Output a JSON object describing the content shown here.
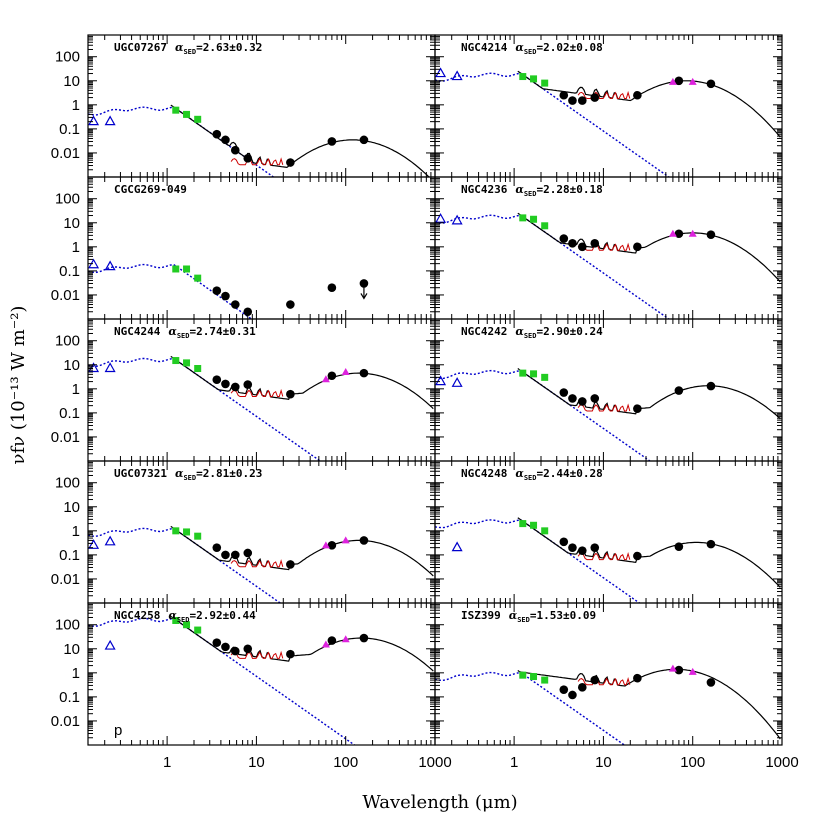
{
  "figure": {
    "xlabel": "Wavelength (μm)",
    "ylabel": "νfν (10⁻¹³ W m⁻²)",
    "x_ticklabels": [
      "1",
      "10",
      "100",
      "1000"
    ],
    "y_ticklabels": [
      "100",
      "10",
      "1",
      "0.1",
      "0.01"
    ]
  },
  "colors": {
    "stellar": "#0000cc",
    "model": "#000000",
    "pah": "#cc0000",
    "nir": "#22cc22",
    "fir": "#dd22dd",
    "data": "#000000"
  },
  "chart_data": [
    {
      "panel": "UGC07267",
      "title": "UGC07267",
      "alpha": "2.63±0.32",
      "type": "scatter",
      "xscale": "log",
      "yscale": "log",
      "xlim": [
        0.13,
        1000
      ],
      "ylim": [
        0.001,
        800
      ],
      "uv": [
        [
          0.15,
          0.2
        ],
        [
          0.23,
          0.2
        ]
      ],
      "nir": [
        [
          1.25,
          0.6
        ],
        [
          1.65,
          0.4
        ],
        [
          2.2,
          0.25
        ]
      ],
      "fir": [],
      "points": [
        [
          3.6,
          0.06
        ],
        [
          4.5,
          0.035
        ],
        [
          5.8,
          0.013
        ],
        [
          8.0,
          0.006
        ],
        [
          24,
          0.004
        ],
        [
          70,
          0.03
        ],
        [
          160,
          0.035
        ]
      ],
      "upper_limits": [],
      "stellar_scale": 0.7,
      "dust_peak": 0.035,
      "dust_peak_x": 120,
      "dust_min": 0.004,
      "show_pah": true
    },
    {
      "panel": "NGC4214",
      "title": "NGC4214",
      "alpha": "2.02±0.08",
      "type": "scatter",
      "xscale": "log",
      "yscale": "log",
      "xlim": [
        0.13,
        1000
      ],
      "ylim": [
        0.001,
        800
      ],
      "uv": [
        [
          0.15,
          20
        ],
        [
          0.23,
          15
        ]
      ],
      "nir": [
        [
          1.25,
          15
        ],
        [
          1.65,
          12
        ],
        [
          2.2,
          8
        ]
      ],
      "fir": [
        [
          60,
          9
        ],
        [
          100,
          9
        ]
      ],
      "points": [
        [
          3.6,
          2.5
        ],
        [
          4.5,
          1.5
        ],
        [
          5.8,
          1.5
        ],
        [
          8.0,
          2.0
        ],
        [
          24,
          2.5
        ],
        [
          70,
          10
        ],
        [
          160,
          7.5
        ]
      ],
      "upper_limits": [],
      "stellar_scale": 18,
      "dust_peak": 10,
      "dust_peak_x": 85,
      "dust_min": 2.3,
      "show_pah": true
    },
    {
      "panel": "CGCG269-049",
      "title": "CGCG269-049",
      "alpha": "",
      "type": "scatter",
      "xscale": "log",
      "yscale": "log",
      "xlim": [
        0.13,
        1000
      ],
      "ylim": [
        0.001,
        800
      ],
      "uv": [
        [
          0.15,
          0.18
        ],
        [
          0.23,
          0.15
        ]
      ],
      "nir": [
        [
          1.25,
          0.12
        ],
        [
          1.65,
          0.12
        ],
        [
          2.2,
          0.05
        ]
      ],
      "fir": [],
      "points": [
        [
          3.6,
          0.015
        ],
        [
          4.5,
          0.009
        ],
        [
          5.8,
          0.004
        ],
        [
          8.0,
          0.002
        ],
        [
          24,
          0.004
        ],
        [
          70,
          0.02
        ],
        [
          160,
          0.03
        ]
      ],
      "upper_limits": [
        160
      ],
      "stellar_scale": 0.16,
      "dust_peak": 0,
      "dust_peak_x": 0,
      "dust_min": 0,
      "show_pah": false
    },
    {
      "panel": "NGC4236",
      "title": "NGC4236",
      "alpha": "2.28±0.18",
      "type": "scatter",
      "xscale": "log",
      "yscale": "log",
      "xlim": [
        0.13,
        1000
      ],
      "ylim": [
        0.001,
        800
      ],
      "uv": [
        [
          0.15,
          14
        ],
        [
          0.23,
          12
        ]
      ],
      "nir": [
        [
          1.25,
          16
        ],
        [
          1.65,
          14
        ],
        [
          2.2,
          7.5
        ]
      ],
      "fir": [
        [
          60,
          3.5
        ],
        [
          100,
          3.5
        ]
      ],
      "points": [
        [
          3.6,
          2.2
        ],
        [
          4.5,
          1.4
        ],
        [
          5.8,
          1.0
        ],
        [
          8.0,
          1.4
        ],
        [
          24,
          1.0
        ],
        [
          70,
          3.5
        ],
        [
          160,
          3.2
        ]
      ],
      "upper_limits": [],
      "stellar_scale": 18,
      "dust_peak": 3.8,
      "dust_peak_x": 100,
      "dust_min": 0.9,
      "show_pah": true
    },
    {
      "panel": "NGC4244",
      "title": "NGC4244",
      "alpha": "2.74±0.31",
      "type": "scatter",
      "xscale": "log",
      "yscale": "log",
      "xlim": [
        0.13,
        1000
      ],
      "ylim": [
        0.001,
        800
      ],
      "uv": [
        [
          0.15,
          7
        ],
        [
          0.23,
          7
        ]
      ],
      "nir": [
        [
          1.25,
          15
        ],
        [
          1.65,
          12
        ],
        [
          2.2,
          7
        ]
      ],
      "fir": [
        [
          60,
          2.5
        ],
        [
          100,
          5
        ]
      ],
      "points": [
        [
          3.6,
          2.4
        ],
        [
          4.5,
          1.6
        ],
        [
          5.8,
          1.2
        ],
        [
          8.0,
          1.5
        ],
        [
          24,
          0.6
        ],
        [
          70,
          3.5
        ],
        [
          160,
          4.5
        ]
      ],
      "upper_limits": [],
      "stellar_scale": 16,
      "dust_peak": 4.5,
      "dust_peak_x": 140,
      "dust_min": 0.6,
      "show_pah": true
    },
    {
      "panel": "NGC4242",
      "title": "NGC4242",
      "alpha": "2.90±0.24",
      "type": "scatter",
      "xscale": "log",
      "yscale": "log",
      "xlim": [
        0.13,
        1000
      ],
      "ylim": [
        0.001,
        800
      ],
      "uv": [
        [
          0.15,
          2
        ],
        [
          0.23,
          1.7
        ]
      ],
      "nir": [
        [
          1.25,
          4.5
        ],
        [
          1.65,
          4.2
        ],
        [
          2.2,
          3
        ]
      ],
      "fir": [],
      "points": [
        [
          3.6,
          0.7
        ],
        [
          4.5,
          0.4
        ],
        [
          5.8,
          0.3
        ],
        [
          8.0,
          0.4
        ],
        [
          24,
          0.15
        ],
        [
          70,
          0.85
        ],
        [
          160,
          1.3
        ]
      ],
      "upper_limits": [],
      "stellar_scale": 5,
      "dust_peak": 1.35,
      "dust_peak_x": 150,
      "dust_min": 0.15,
      "show_pah": true
    },
    {
      "panel": "UGC07321",
      "title": "UGC07321",
      "alpha": "2.81±0.23",
      "type": "scatter",
      "xscale": "log",
      "yscale": "log",
      "xlim": [
        0.13,
        1000
      ],
      "ylim": [
        0.001,
        800
      ],
      "uv": [
        [
          0.15,
          0.25
        ],
        [
          0.23,
          0.35
        ]
      ],
      "nir": [
        [
          1.25,
          1.0
        ],
        [
          1.65,
          0.9
        ],
        [
          2.2,
          0.6
        ]
      ],
      "fir": [
        [
          60,
          0.25
        ],
        [
          100,
          0.4
        ]
      ],
      "points": [
        [
          3.6,
          0.2
        ],
        [
          4.5,
          0.1
        ],
        [
          5.8,
          0.1
        ],
        [
          8.0,
          0.12
        ],
        [
          24,
          0.04
        ],
        [
          70,
          0.25
        ],
        [
          160,
          0.4
        ]
      ],
      "upper_limits": [],
      "stellar_scale": 1.1,
      "dust_peak": 0.4,
      "dust_peak_x": 140,
      "dust_min": 0.04,
      "show_pah": true
    },
    {
      "panel": "NGC4248",
      "title": "NGC4248",
      "alpha": "2.44±0.28",
      "type": "scatter",
      "xscale": "log",
      "yscale": "log",
      "xlim": [
        0.13,
        1000
      ],
      "ylim": [
        0.001,
        800
      ],
      "uv": [
        [
          0.23,
          0.2
        ]
      ],
      "nir": [
        [
          1.25,
          2.0
        ],
        [
          1.65,
          1.7
        ],
        [
          2.2,
          1.0
        ]
      ],
      "fir": [],
      "points": [
        [
          3.6,
          0.35
        ],
        [
          4.5,
          0.2
        ],
        [
          5.8,
          0.15
        ],
        [
          8.0,
          0.2
        ],
        [
          24,
          0.09
        ],
        [
          70,
          0.22
        ],
        [
          160,
          0.28
        ]
      ],
      "upper_limits": [],
      "stellar_scale": 2.5,
      "dust_peak": 0.33,
      "dust_peak_x": 110,
      "dust_min": 0.08,
      "show_pah": true
    },
    {
      "panel": "NGC4258",
      "title": "NGC4258",
      "alpha": "2.92±0.44",
      "type": "scatter",
      "xscale": "log",
      "yscale": "log",
      "xlim": [
        0.13,
        1000
      ],
      "ylim": [
        0.001,
        800
      ],
      "uv": [
        [
          0.23,
          13
        ]
      ],
      "nir": [
        [
          1.25,
          150
        ],
        [
          1.65,
          100
        ],
        [
          2.2,
          60
        ]
      ],
      "fir": [
        [
          60,
          15
        ],
        [
          100,
          25
        ]
      ],
      "points": [
        [
          3.6,
          18
        ],
        [
          4.5,
          12
        ],
        [
          5.8,
          8
        ],
        [
          8.0,
          10
        ],
        [
          24,
          6
        ],
        [
          70,
          22
        ],
        [
          160,
          28
        ]
      ],
      "upper_limits": [],
      "stellar_scale": 160,
      "dust_peak": 28,
      "dust_peak_x": 150,
      "dust_min": 5,
      "show_pah": true,
      "note": "p"
    },
    {
      "panel": "ISZ399",
      "title": "ISZ399",
      "alpha": "1.53±0.09",
      "type": "scatter",
      "xscale": "log",
      "yscale": "log",
      "xlim": [
        0.13,
        1000
      ],
      "ylim": [
        0.001,
        800
      ],
      "uv": [],
      "nir": [
        [
          1.25,
          0.8
        ],
        [
          1.65,
          0.7
        ],
        [
          2.2,
          0.5
        ]
      ],
      "fir": [
        [
          60,
          1.5
        ],
        [
          100,
          1.1
        ]
      ],
      "points": [
        [
          3.6,
          0.2
        ],
        [
          4.5,
          0.12
        ],
        [
          5.8,
          0.25
        ],
        [
          8.0,
          0.5
        ],
        [
          24,
          0.6
        ],
        [
          70,
          1.3
        ],
        [
          160,
          0.4
        ]
      ],
      "upper_limits": [],
      "stellar_scale": 0.9,
      "dust_peak": 1.4,
      "dust_peak_x": 65,
      "dust_min": 0.4,
      "show_pah": true
    }
  ]
}
